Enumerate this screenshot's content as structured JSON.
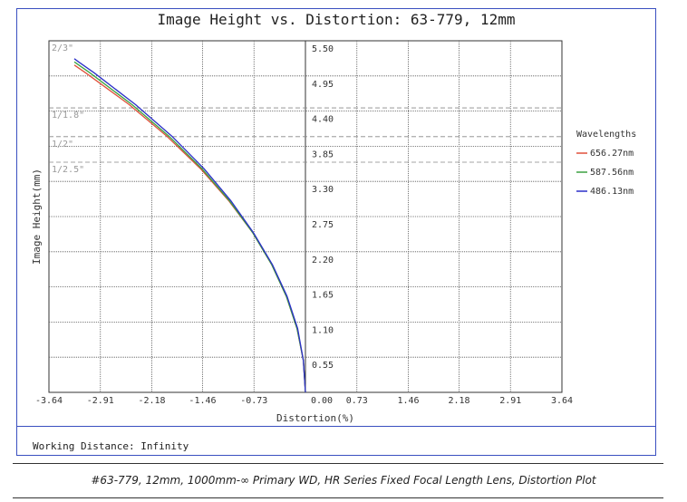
{
  "chart_data": {
    "type": "line",
    "title": "Image Height vs. Distortion: 63-779, 12mm",
    "xlabel": "Distortion(%)",
    "ylabel": "Image Height(mm)",
    "xlim": [
      -3.64,
      3.64
    ],
    "ylim": [
      0,
      5.5
    ],
    "x_ticks": [
      "-3.64",
      "-2.91",
      "-2.18",
      "-1.46",
      "-0.73",
      "0.00",
      "0.73",
      "1.46",
      "2.18",
      "2.91",
      "3.64"
    ],
    "y_ticks": [
      "0.55",
      "1.10",
      "1.65",
      "2.20",
      "2.75",
      "3.30",
      "3.85",
      "4.40",
      "4.95",
      "5.50"
    ],
    "grid": true,
    "legend_title": "Wavelengths",
    "legend_position": "right",
    "sensor_markers": [
      {
        "label": "2/3\"",
        "y": 5.5
      },
      {
        "label": "1/1.8\"",
        "y": 4.45
      },
      {
        "label": "1/2\"",
        "y": 4.0
      },
      {
        "label": "1/2.5\"",
        "y": 3.6
      }
    ],
    "series": [
      {
        "name": "656.27nm",
        "color": "#e0503a",
        "x": [
          0,
          -0.03,
          -0.12,
          -0.27,
          -0.48,
          -0.75,
          -1.09,
          -1.49,
          -1.96,
          -2.5,
          -3.12,
          -3.28
        ],
        "y": [
          0,
          0.5,
          1.0,
          1.5,
          2.0,
          2.5,
          3.0,
          3.5,
          4.0,
          4.5,
          5.0,
          5.12
        ]
      },
      {
        "name": "587.56nm",
        "color": "#3aa040",
        "x": [
          0,
          -0.03,
          -0.12,
          -0.27,
          -0.48,
          -0.75,
          -1.08,
          -1.47,
          -1.93,
          -2.46,
          -3.06,
          -3.28
        ],
        "y": [
          0,
          0.5,
          1.0,
          1.5,
          2.0,
          2.5,
          3.0,
          3.5,
          4.0,
          4.5,
          5.0,
          5.17
        ]
      },
      {
        "name": "486.13nm",
        "color": "#2b2fc8",
        "x": [
          0,
          -0.03,
          -0.11,
          -0.26,
          -0.47,
          -0.74,
          -1.06,
          -1.44,
          -1.89,
          -2.41,
          -3.0,
          -3.22,
          -3.28
        ],
        "y": [
          0,
          0.5,
          1.0,
          1.5,
          2.0,
          2.5,
          3.0,
          3.5,
          4.0,
          4.5,
          5.0,
          5.17,
          5.22
        ]
      }
    ]
  },
  "footer": {
    "working_distance": "Working Distance: Infinity"
  },
  "caption": "#63-779, 12mm, 1000mm-∞ Primary WD, HR Series Fixed Focal Length Lens, Distortion Plot"
}
